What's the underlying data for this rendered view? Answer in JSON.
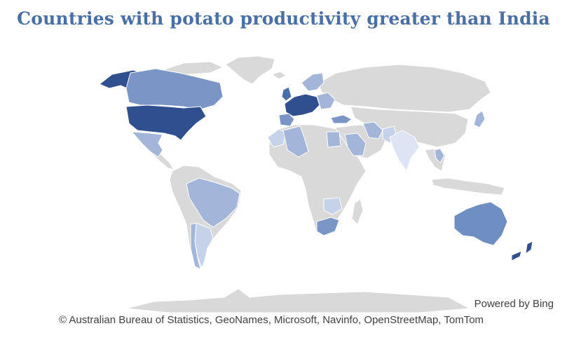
{
  "map": {
    "title": "Countries with potato productivity greater than India",
    "powered_by": "Powered by Bing",
    "attribution": "© Australian Bureau of Statistics, GeoNames, Microsoft, Navinfo, OpenStreetMap, TomTom",
    "colors": {
      "background": "#ffffff",
      "land_no_data": "#d9d9d9",
      "darkest": "#2f4f8f",
      "dark": "#4a6fa8",
      "medium": "#7b96c6",
      "light": "#a3b6da",
      "lightest": "#c6d2ea",
      "pale": "#dde5f4"
    },
    "highlighted_regions": [
      {
        "region": "United States",
        "shade": "darkest"
      },
      {
        "region": "Alaska",
        "shade": "darkest"
      },
      {
        "region": "Canada",
        "shade": "medium"
      },
      {
        "region": "Mexico",
        "shade": "light"
      },
      {
        "region": "Brazil",
        "shade": "light"
      },
      {
        "region": "Argentina",
        "shade": "lightest"
      },
      {
        "region": "Chile",
        "shade": "light"
      },
      {
        "region": "Australia",
        "shade": "dark"
      },
      {
        "region": "New Zealand",
        "shade": "darkest"
      },
      {
        "region": "Western Europe",
        "shade": "darkest"
      },
      {
        "region": "United Kingdom",
        "shade": "dark"
      },
      {
        "region": "Scandinavia",
        "shade": "light"
      },
      {
        "region": "Eastern Europe",
        "shade": "light"
      },
      {
        "region": "Algeria",
        "shade": "light"
      },
      {
        "region": "Morocco",
        "shade": "lightest"
      },
      {
        "region": "Egypt",
        "shade": "light"
      },
      {
        "region": "Saudi Arabia",
        "shade": "light"
      },
      {
        "region": "Turkey",
        "shade": "medium"
      },
      {
        "region": "Iran",
        "shade": "light"
      },
      {
        "region": "Pakistan",
        "shade": "lightest"
      },
      {
        "region": "India",
        "shade": "pale"
      },
      {
        "region": "South Africa",
        "shade": "dark"
      },
      {
        "region": "Southern Africa",
        "shade": "lightest"
      },
      {
        "region": "Japan",
        "shade": "light"
      },
      {
        "region": "Southeast Asia",
        "shade": "light"
      }
    ]
  }
}
